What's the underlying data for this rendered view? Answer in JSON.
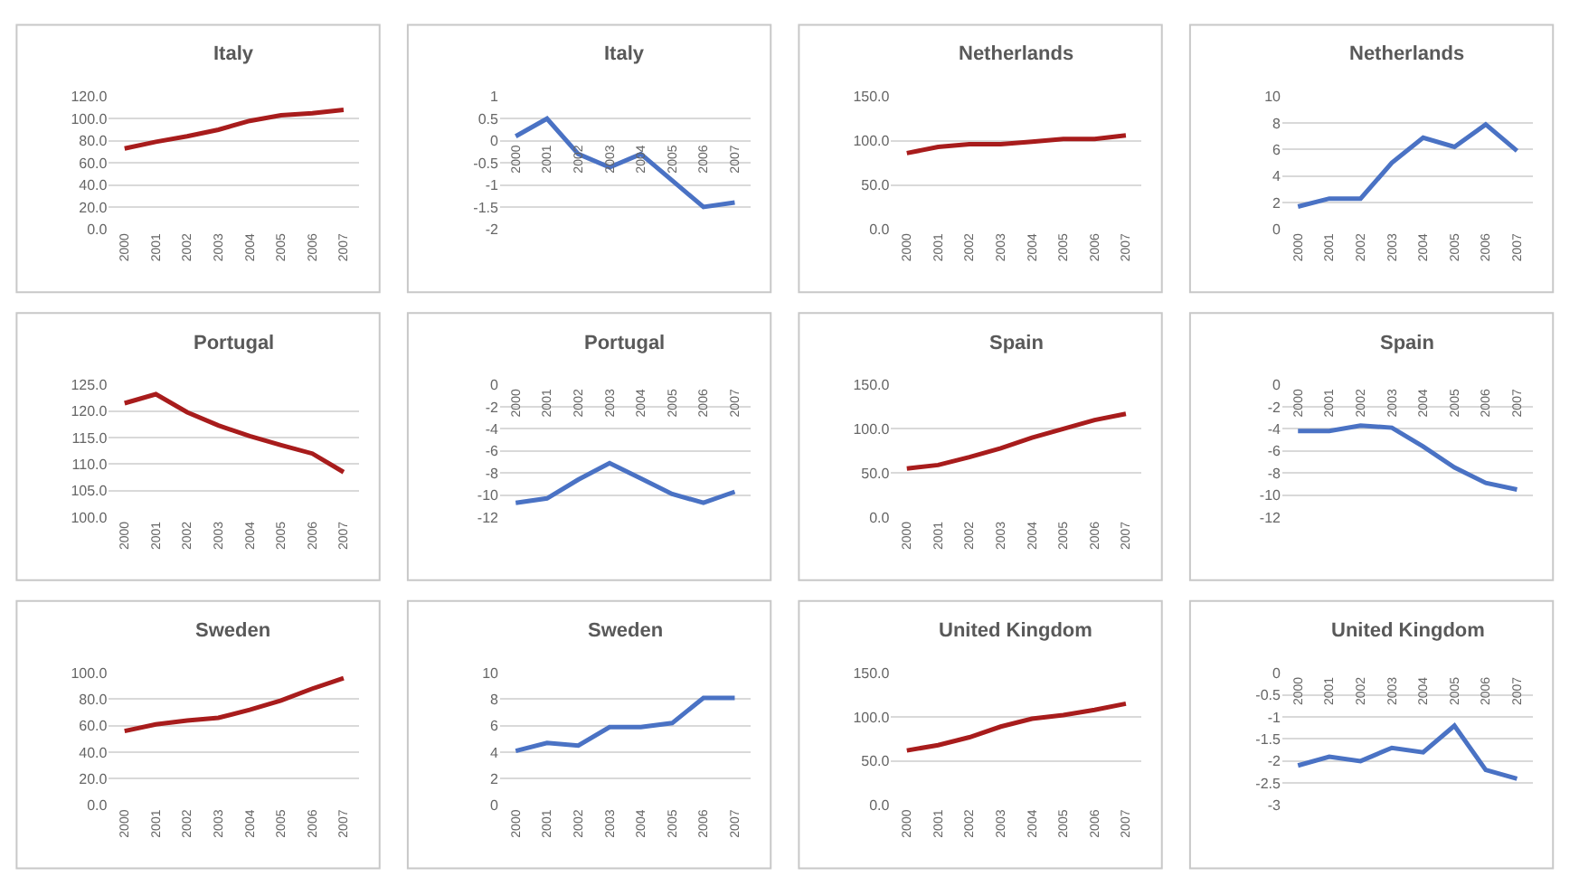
{
  "chart_data": [
    {
      "type": "line",
      "title": "Italy",
      "categories": [
        "2000",
        "2001",
        "2002",
        "2003",
        "2004",
        "2005",
        "2006",
        "2007"
      ],
      "values": [
        73,
        79,
        84,
        90,
        98,
        103,
        105,
        108
      ],
      "color": "#a81c1c",
      "ylim": [
        0,
        120
      ],
      "yticks": [
        {
          "value": 0,
          "label": "0.0"
        },
        {
          "value": 20,
          "label": "20.0"
        },
        {
          "value": 40,
          "label": "40.0"
        },
        {
          "value": 60,
          "label": "60.0"
        },
        {
          "value": 80,
          "label": "80.0"
        },
        {
          "value": 100,
          "label": "100.0"
        },
        {
          "value": 120,
          "label": "120.0"
        }
      ],
      "grid": "y"
    },
    {
      "type": "line",
      "title": "Italy",
      "categories": [
        "2000",
        "2001",
        "2002",
        "2003",
        "2004",
        "2005",
        "2006",
        "2007"
      ],
      "values": [
        0.1,
        0.5,
        -0.3,
        -0.6,
        -0.3,
        -0.9,
        -1.5,
        -1.4
      ],
      "color": "#4a72c4",
      "ylim": [
        -2,
        1
      ],
      "yticks": [
        -2,
        -1.5,
        -1,
        -0.5,
        0,
        0.5,
        1
      ],
      "grid": "y"
    },
    {
      "type": "line",
      "title": "Netherlands",
      "categories": [
        "2000",
        "2001",
        "2002",
        "2003",
        "2004",
        "2005",
        "2006",
        "2007"
      ],
      "values": [
        86,
        93,
        96,
        96,
        99,
        102,
        102,
        106
      ],
      "color": "#a81c1c",
      "ylim": [
        0,
        150
      ],
      "yticks": [
        {
          "value": 0,
          "label": "0.0"
        },
        {
          "value": 50,
          "label": "50.0"
        },
        {
          "value": 100,
          "label": "100.0"
        },
        {
          "value": 150,
          "label": "150.0"
        }
      ],
      "grid": "y"
    },
    {
      "type": "line",
      "title": "Netherlands",
      "categories": [
        "2000",
        "2001",
        "2002",
        "2003",
        "2004",
        "2005",
        "2006",
        "2007"
      ],
      "values": [
        1.7,
        2.3,
        2.3,
        5.0,
        6.9,
        6.2,
        7.9,
        5.9
      ],
      "color": "#4a72c4",
      "ylim": [
        0,
        10
      ],
      "yticks": [
        0,
        2,
        4,
        6,
        8,
        10
      ],
      "grid": "y"
    },
    {
      "type": "line",
      "title": "Portugal",
      "categories": [
        "2000",
        "2001",
        "2002",
        "2003",
        "2004",
        "2005",
        "2006",
        "2007"
      ],
      "values": [
        121.5,
        123.2,
        119.8,
        117.3,
        115.3,
        113.6,
        112.0,
        108.5
      ],
      "color": "#a81c1c",
      "ylim": [
        100,
        125
      ],
      "yticks": [
        {
          "value": 100,
          "label": "100.0"
        },
        {
          "value": 105,
          "label": "105.0"
        },
        {
          "value": 110,
          "label": "110.0"
        },
        {
          "value": 115,
          "label": "115.0"
        },
        {
          "value": 120,
          "label": "120.0"
        },
        {
          "value": 125,
          "label": "125.0"
        }
      ],
      "grid": "y"
    },
    {
      "type": "line",
      "title": "Portugal",
      "categories": [
        "2000",
        "2001",
        "2002",
        "2003",
        "2004",
        "2005",
        "2006",
        "2007"
      ],
      "values": [
        -10.7,
        -10.3,
        -8.6,
        -7.1,
        -8.5,
        -9.9,
        -10.7,
        -9.7
      ],
      "color": "#4a72c4",
      "ylim": [
        -12,
        0
      ],
      "yticks": [
        -12,
        -10,
        -8,
        -6,
        -4,
        -2,
        0
      ],
      "grid": "y"
    },
    {
      "type": "line",
      "title": "Spain",
      "categories": [
        "2000",
        "2001",
        "2002",
        "2003",
        "2004",
        "2005",
        "2006",
        "2007"
      ],
      "values": [
        55,
        59,
        68,
        78,
        90,
        100,
        110,
        117
      ],
      "color": "#a81c1c",
      "ylim": [
        0,
        150
      ],
      "yticks": [
        {
          "value": 0,
          "label": "0.0"
        },
        {
          "value": 50,
          "label": "50.0"
        },
        {
          "value": 100,
          "label": "100.0"
        },
        {
          "value": 150,
          "label": "150.0"
        }
      ],
      "grid": "y"
    },
    {
      "type": "line",
      "title": "Spain",
      "categories": [
        "2000",
        "2001",
        "2002",
        "2003",
        "2004",
        "2005",
        "2006",
        "2007"
      ],
      "values": [
        -4.2,
        -4.2,
        -3.7,
        -3.9,
        -5.6,
        -7.5,
        -8.9,
        -9.5
      ],
      "color": "#4a72c4",
      "ylim": [
        -12,
        0
      ],
      "yticks": [
        -12,
        -10,
        -8,
        -6,
        -4,
        -2,
        0
      ],
      "grid": "y"
    },
    {
      "type": "line",
      "title": "Sweden",
      "categories": [
        "2000",
        "2001",
        "2002",
        "2003",
        "2004",
        "2005",
        "2006",
        "2007"
      ],
      "values": [
        56,
        61,
        64,
        66,
        72,
        79,
        88,
        96
      ],
      "color": "#a81c1c",
      "ylim": [
        0,
        100
      ],
      "yticks": [
        {
          "value": 0,
          "label": "0.0"
        },
        {
          "value": 20,
          "label": "20.0"
        },
        {
          "value": 40,
          "label": "40.0"
        },
        {
          "value": 60,
          "label": "60.0"
        },
        {
          "value": 80,
          "label": "80.0"
        },
        {
          "value": 100,
          "label": "100.0"
        }
      ],
      "grid": "y"
    },
    {
      "type": "line",
      "title": "Sweden",
      "categories": [
        "2000",
        "2001",
        "2002",
        "2003",
        "2004",
        "2005",
        "2006",
        "2007"
      ],
      "values": [
        4.1,
        4.7,
        4.5,
        5.9,
        5.9,
        6.2,
        8.1,
        8.1
      ],
      "color": "#4a72c4",
      "ylim": [
        0,
        10
      ],
      "yticks": [
        0,
        2,
        4,
        6,
        8,
        10
      ],
      "grid": "y"
    },
    {
      "type": "line",
      "title": "United Kingdom",
      "categories": [
        "2000",
        "2001",
        "2002",
        "2003",
        "2004",
        "2005",
        "2006",
        "2007"
      ],
      "values": [
        62,
        68,
        77,
        89,
        98,
        102,
        108,
        115
      ],
      "color": "#a81c1c",
      "ylim": [
        0,
        150
      ],
      "yticks": [
        {
          "value": 0,
          "label": "0.0"
        },
        {
          "value": 50,
          "label": "50.0"
        },
        {
          "value": 100,
          "label": "100.0"
        },
        {
          "value": 150,
          "label": "150.0"
        }
      ],
      "grid": "y"
    },
    {
      "type": "line",
      "title": "United Kingdom",
      "categories": [
        "2000",
        "2001",
        "2002",
        "2003",
        "2004",
        "2005",
        "2006",
        "2007"
      ],
      "values": [
        -2.1,
        -1.9,
        -2.0,
        -1.7,
        -1.8,
        -1.2,
        -2.2,
        -2.4
      ],
      "color": "#4a72c4",
      "ylim": [
        -3,
        0
      ],
      "yticks": [
        -3,
        -2.5,
        -2,
        -1.5,
        -1,
        -0.5,
        0
      ],
      "grid": "y"
    }
  ]
}
